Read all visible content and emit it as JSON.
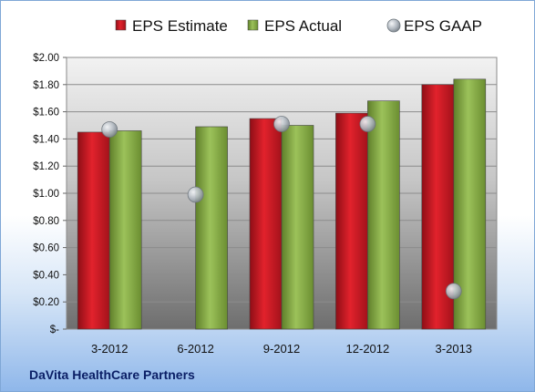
{
  "company_label": "DaVita HealthCare Partners",
  "chart_data": {
    "type": "bar",
    "categories": [
      "3-2012",
      "6-2012",
      "9-2012",
      "12-2012",
      "3-2013"
    ],
    "series": [
      {
        "name": "EPS Estimate",
        "kind": "bar",
        "color": "#c8102e",
        "values": [
          1.45,
          null,
          1.55,
          1.59,
          1.8
        ]
      },
      {
        "name": "EPS Actual",
        "kind": "bar",
        "color": "#8cb04a",
        "values": [
          1.46,
          1.49,
          1.5,
          1.68,
          1.84
        ]
      },
      {
        "name": "EPS GAAP",
        "kind": "marker",
        "color": "#aab3bd",
        "values": [
          1.47,
          0.99,
          1.51,
          1.51,
          0.28
        ]
      }
    ],
    "ylim": [
      0,
      2.0
    ],
    "ytick_values": [
      0,
      0.2,
      0.4,
      0.6,
      0.8,
      1.0,
      1.2,
      1.4,
      1.6,
      1.8,
      2.0
    ],
    "ytick_labels": [
      "$-",
      "$0.20",
      "$0.40",
      "$0.60",
      "$0.80",
      "$1.00",
      "$1.20",
      "$1.40",
      "$1.60",
      "$1.80",
      "$2.00"
    ],
    "grid": true,
    "legend_position": "top"
  }
}
